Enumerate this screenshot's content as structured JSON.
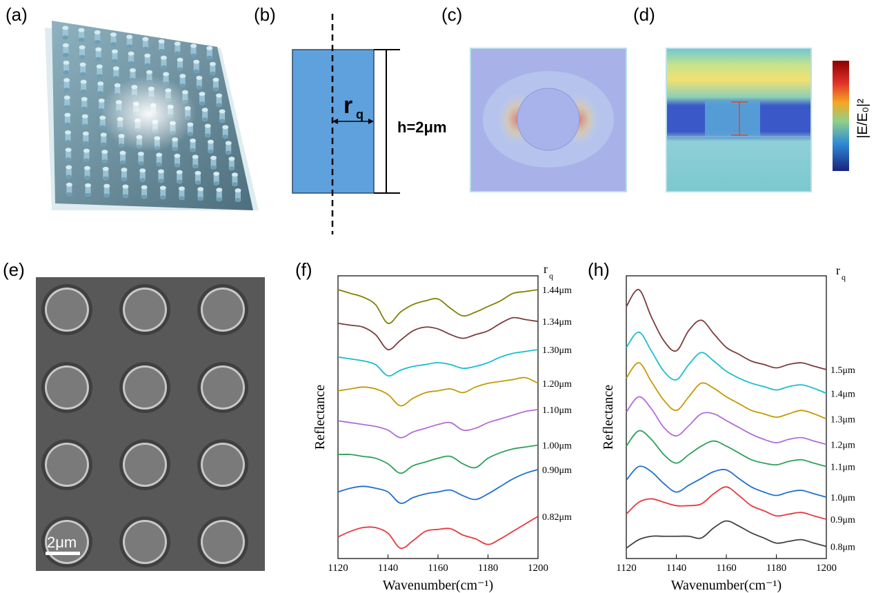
{
  "panel_labels": {
    "a": "(a)",
    "b": "(b)",
    "c": "(c)",
    "d": "(d)",
    "e": "(e)",
    "f": "(f)",
    "h": "(h)"
  },
  "schematic": {
    "r_label": "r",
    "r_sub": "q",
    "h_label": "h=2μm"
  },
  "colorbar_label": "|E/E₀|²",
  "sem": {
    "scale_label": "2μm"
  },
  "colors": {
    "pillar_blue": "#5ea1dd",
    "cb_top": "#8b0000",
    "cb_bottom": "#1a237e"
  },
  "plot_f": {
    "ylabel": "Reflectance",
    "xlabel": "Wavenumber(cm⁻¹)",
    "legend_title": "r",
    "legend_sub": "q",
    "xticks": [
      "1120",
      "1140",
      "1160",
      "1180",
      "1200"
    ]
  },
  "plot_h": {
    "ylabel": "Reflectance",
    "xlabel": "Wavenumber(cm⁻¹)",
    "legend_title": "r",
    "legend_sub": "q",
    "xticks": [
      "1120",
      "1140",
      "1160",
      "1180",
      "1200"
    ]
  },
  "chart_data": [
    {
      "type": "line",
      "panel": "f",
      "xlabel": "Wavenumber(cm⁻¹)",
      "ylabel": "Reflectance",
      "xlim": [
        1120,
        1200
      ],
      "x": [
        1120,
        1125,
        1130,
        1135,
        1140,
        1145,
        1150,
        1155,
        1160,
        1165,
        1170,
        1175,
        1180,
        1185,
        1190,
        1195,
        1200
      ],
      "series": [
        {
          "name": "1.44μm",
          "color": "#808000",
          "values": [
            7.2,
            7.1,
            7.0,
            6.8,
            6.3,
            6.6,
            6.8,
            6.9,
            6.95,
            6.7,
            6.5,
            6.6,
            6.75,
            6.9,
            7.1,
            7.15,
            7.2
          ]
        },
        {
          "name": "1.34μm",
          "color": "#7b3a3a",
          "values": [
            6.3,
            6.25,
            6.2,
            6.0,
            5.6,
            5.85,
            6.1,
            6.2,
            6.15,
            6.0,
            5.9,
            6.0,
            6.1,
            6.3,
            6.45,
            6.4,
            6.35
          ]
        },
        {
          "name": "1.30μm",
          "color": "#17becf",
          "values": [
            5.4,
            5.35,
            5.3,
            5.2,
            4.9,
            5.05,
            5.15,
            5.2,
            5.25,
            5.2,
            5.1,
            5.15,
            5.25,
            5.4,
            5.5,
            5.55,
            5.6
          ]
        },
        {
          "name": "1.20μm",
          "color": "#c49a00",
          "values": [
            4.5,
            4.55,
            4.6,
            4.55,
            4.4,
            4.1,
            4.3,
            4.45,
            4.5,
            4.55,
            4.45,
            4.6,
            4.7,
            4.75,
            4.8,
            4.85,
            4.7
          ]
        },
        {
          "name": "1.10μm",
          "color": "#b26bd6",
          "values": [
            3.7,
            3.65,
            3.6,
            3.55,
            3.45,
            3.25,
            3.4,
            3.5,
            3.6,
            3.65,
            3.45,
            3.5,
            3.65,
            3.75,
            3.85,
            3.95,
            4.0
          ]
        },
        {
          "name": "1.00μm",
          "color": "#2ca05a",
          "values": [
            2.8,
            2.8,
            2.75,
            2.7,
            2.55,
            2.3,
            2.5,
            2.6,
            2.7,
            2.75,
            2.55,
            2.45,
            2.7,
            2.85,
            2.95,
            3.0,
            3.05
          ]
        },
        {
          "name": "0.90μm",
          "color": "#1f6fd0",
          "values": [
            1.8,
            1.9,
            1.95,
            1.9,
            1.8,
            1.5,
            1.65,
            1.75,
            1.8,
            1.85,
            1.7,
            1.6,
            1.75,
            1.95,
            2.15,
            2.3,
            2.4
          ]
        },
        {
          "name": "0.82μm",
          "color": "#e8383d",
          "values": [
            0.6,
            0.75,
            0.85,
            0.85,
            0.7,
            0.3,
            0.5,
            0.75,
            0.8,
            0.82,
            0.65,
            0.55,
            0.4,
            0.55,
            0.75,
            0.95,
            1.15
          ]
        }
      ]
    },
    {
      "type": "line",
      "panel": "h",
      "xlabel": "Wavenumber(cm⁻¹)",
      "ylabel": "Reflectance",
      "xlim": [
        1120,
        1200
      ],
      "x": [
        1120,
        1125,
        1130,
        1135,
        1140,
        1145,
        1150,
        1155,
        1160,
        1165,
        1170,
        1175,
        1180,
        1185,
        1190,
        1195,
        1200
      ],
      "series": [
        {
          "name": "1.5μm",
          "color": "#7b3a3a",
          "values": [
            8.6,
            9.1,
            8.3,
            7.6,
            7.3,
            7.9,
            8.2,
            7.8,
            7.4,
            7.2,
            7.0,
            6.9,
            6.8,
            6.9,
            6.95,
            6.85,
            6.75
          ]
        },
        {
          "name": "1.4μm",
          "color": "#17becf",
          "values": [
            7.4,
            7.85,
            7.3,
            6.7,
            6.45,
            6.9,
            7.25,
            7.0,
            6.7,
            6.5,
            6.35,
            6.25,
            6.15,
            6.25,
            6.3,
            6.2,
            6.05
          ]
        },
        {
          "name": "1.3μm",
          "color": "#c49a00",
          "values": [
            6.5,
            6.95,
            6.4,
            5.85,
            5.55,
            5.95,
            6.35,
            6.2,
            5.95,
            5.75,
            5.55,
            5.45,
            5.35,
            5.45,
            5.55,
            5.45,
            5.3
          ]
        },
        {
          "name": "1.2μm",
          "color": "#b26bd6",
          "values": [
            5.5,
            5.95,
            5.6,
            5.05,
            4.8,
            5.1,
            5.45,
            5.45,
            5.25,
            5.05,
            4.85,
            4.7,
            4.6,
            4.7,
            4.75,
            4.65,
            4.55
          ]
        },
        {
          "name": "1.1μm",
          "color": "#2ca05a",
          "values": [
            4.5,
            4.95,
            4.7,
            4.25,
            4.0,
            4.25,
            4.5,
            4.65,
            4.5,
            4.3,
            4.1,
            4.0,
            3.95,
            4.05,
            4.1,
            4.0,
            3.9
          ]
        },
        {
          "name": "1.0μm",
          "color": "#1f6fd0",
          "values": [
            3.5,
            3.9,
            3.75,
            3.4,
            3.15,
            3.35,
            3.55,
            3.75,
            3.8,
            3.55,
            3.3,
            3.15,
            3.05,
            3.15,
            3.2,
            3.1,
            3.0
          ]
        },
        {
          "name": "0.9μm",
          "color": "#e8383d",
          "values": [
            2.5,
            2.85,
            2.95,
            2.85,
            2.75,
            2.75,
            2.8,
            3.1,
            3.3,
            3.05,
            2.75,
            2.6,
            2.45,
            2.5,
            2.55,
            2.45,
            2.35
          ]
        },
        {
          "name": "0.8μm",
          "color": "#404040",
          "values": [
            1.5,
            1.75,
            1.85,
            1.85,
            1.85,
            1.85,
            1.8,
            2.1,
            2.3,
            2.15,
            1.95,
            1.8,
            1.65,
            1.7,
            1.75,
            1.65,
            1.55
          ]
        }
      ]
    }
  ]
}
